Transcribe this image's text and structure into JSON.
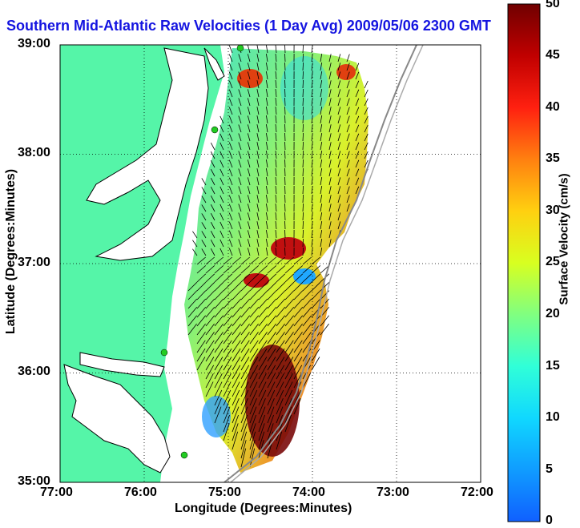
{
  "title": "Southern Mid-Atlantic Raw Velocities (1 Day Avg) 2009/05/06 2300 GMT",
  "xlabel": "Longitude (Degrees:Minutes)",
  "ylabel": "Latitude (Degrees:Minutes)",
  "x_ticks": [
    "77:00",
    "76:00",
    "75:00",
    "74:00",
    "73:00",
    "72:00"
  ],
  "y_ticks": [
    "39:00",
    "38:00",
    "37:00",
    "36:00",
    "35:00"
  ],
  "colorbar": {
    "label": "Surface Velocity (cm/s)",
    "ticks": [
      "0",
      "5",
      "10",
      "15",
      "20",
      "25",
      "30",
      "35",
      "40",
      "45",
      "50"
    ],
    "min": 0,
    "max": 50
  },
  "colors": {
    "title": "#1414e0",
    "land": "#55f5a8",
    "ocean": "#ffffff",
    "coast": "#000000",
    "station": "#22cc22",
    "bathymetry": "#888888"
  },
  "map_extent": {
    "lon": [
      -77,
      -72
    ],
    "lat": [
      35,
      39
    ]
  },
  "stations_count": 4
}
